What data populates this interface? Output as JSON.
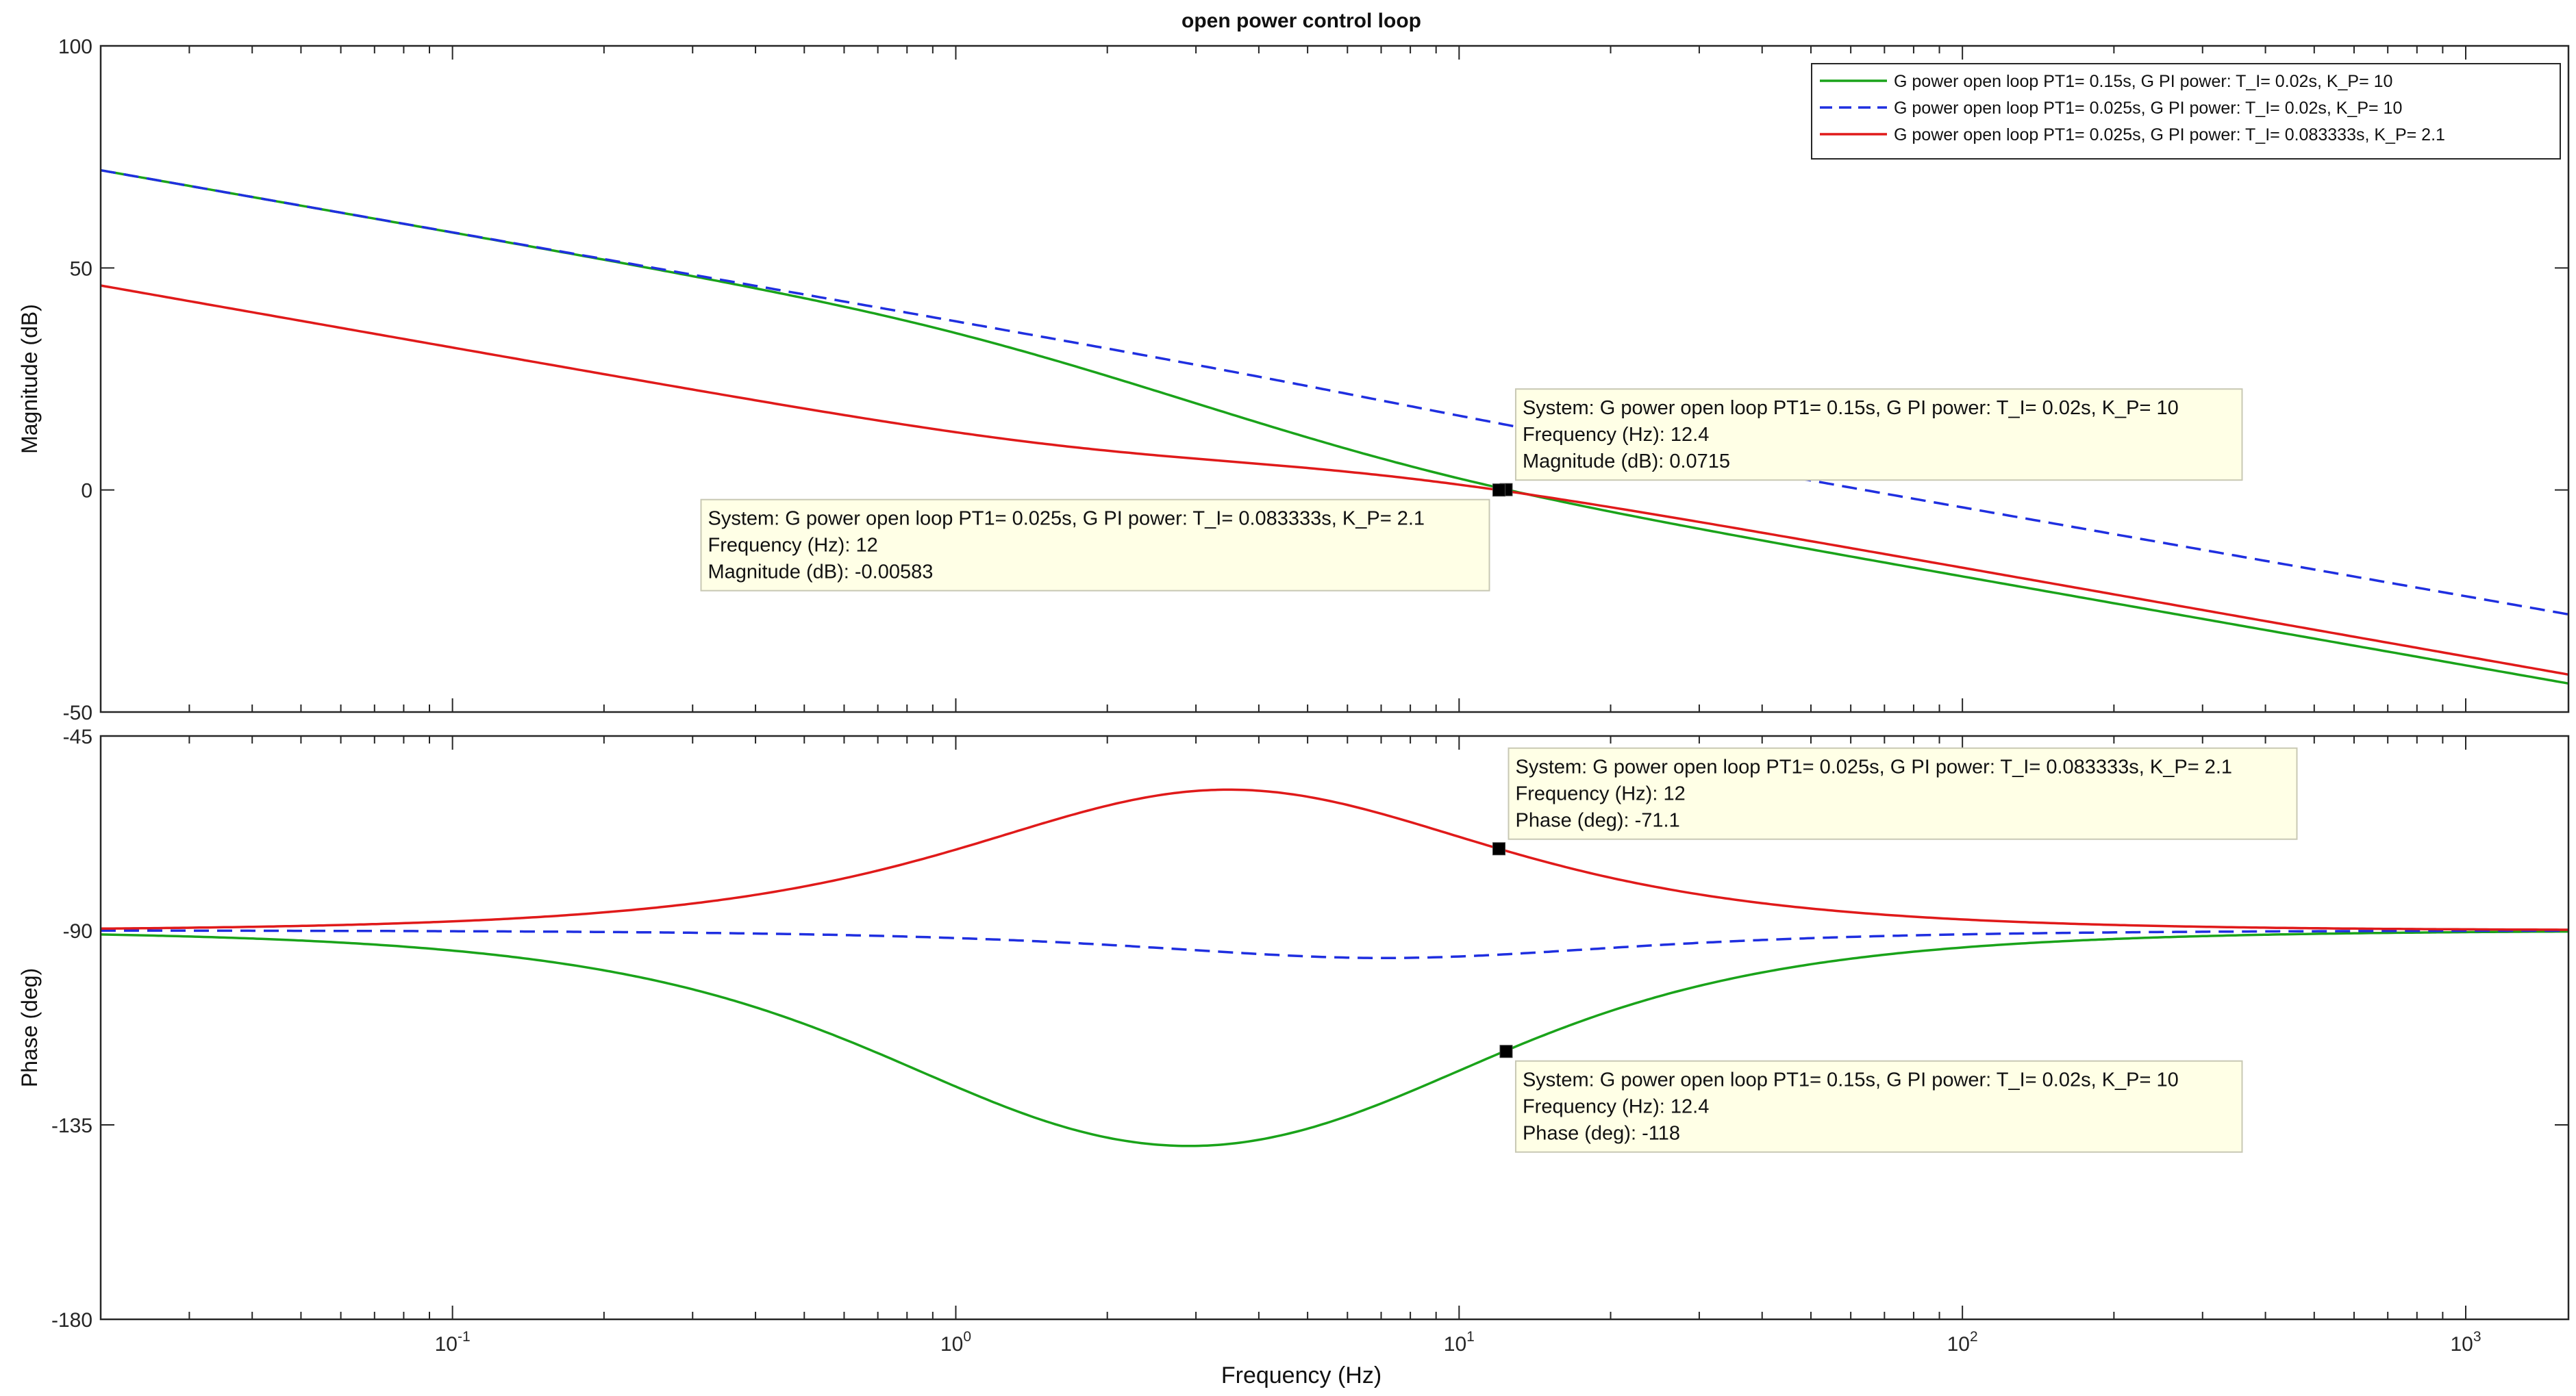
{
  "chart_data": {
    "type": "line",
    "title": "open power control loop",
    "xlabel": "Frequency  (Hz)",
    "xscale": "log",
    "xlim": [
      0.02,
      1600
    ],
    "x_tick_labels": [
      {
        "base": "10",
        "exp": "-1",
        "value": 0.1
      },
      {
        "base": "10",
        "exp": "0",
        "value": 1
      },
      {
        "base": "10",
        "exp": "1",
        "value": 10
      },
      {
        "base": "10",
        "exp": "2",
        "value": 100
      },
      {
        "base": "10",
        "exp": "3",
        "value": 1000
      }
    ],
    "legend_position": "top-right",
    "series": [
      {
        "name": "G power open loop PT1= 0.15s, G PI power: T_I= 0.02s, K_P= 10",
        "color": "#1aa31a",
        "style": "solid",
        "tau": 0.15,
        "Ti": 0.02,
        "Kp": 10
      },
      {
        "name": "G power open loop PT1= 0.025s, G PI power: T_I= 0.02s, K_P= 10",
        "color": "#1f2fe0",
        "style": "dashed",
        "tau": 0.025,
        "Ti": 0.02,
        "Kp": 10
      },
      {
        "name": "G power open loop PT1= 0.025s, G PI power: T_I= 0.083333s, K_P= 2.1",
        "color": "#e01a1a",
        "style": "solid",
        "tau": 0.025,
        "Ti": 0.083333,
        "Kp": 2.1
      }
    ],
    "magnitude": {
      "ylabel": "Magnitude (dB)",
      "ylim": [
        -50,
        100
      ],
      "y_ticks": [
        100,
        50,
        0,
        -50
      ],
      "y_tick_labels": [
        "100",
        "50",
        "0",
        "-50"
      ]
    },
    "phase": {
      "ylabel": "Phase (deg)",
      "ylim": [
        -180,
        -45
      ],
      "y_ticks": [
        -45,
        -90,
        -135,
        -180
      ],
      "y_tick_labels": [
        "-45",
        "-90",
        "-135",
        "-180"
      ]
    },
    "datatips": [
      {
        "panel": "magnitude",
        "series": 0,
        "x": 12.4,
        "y": 0.0715,
        "placement": "above-right",
        "lines": [
          "System: G power open loop PT1= 0.15s, G PI power: T_I= 0.02s, K_P= 10",
          "Frequency (Hz): 12.4",
          "Magnitude (dB): 0.0715"
        ]
      },
      {
        "panel": "magnitude",
        "series": 2,
        "x": 12,
        "y": -0.00583,
        "placement": "below-left",
        "lines": [
          "System: G power open loop PT1= 0.025s, G PI power: T_I= 0.083333s, K_P= 2.1",
          "Frequency (Hz): 12",
          "Magnitude (dB): -0.00583"
        ]
      },
      {
        "panel": "phase",
        "series": 2,
        "x": 12,
        "y": -71.1,
        "placement": "above-right",
        "lines": [
          "System: G power open loop PT1= 0.025s, G PI power: T_I= 0.083333s, K_P= 2.1",
          "Frequency (Hz): 12",
          "Phase (deg): -71.1"
        ]
      },
      {
        "panel": "phase",
        "series": 0,
        "x": 12.4,
        "y": -118,
        "placement": "below-right",
        "lines": [
          "System: G power open loop PT1= 0.15s, G PI power: T_I= 0.02s, K_P= 10",
          "Frequency (Hz): 12.4",
          "Phase (deg): -118"
        ]
      }
    ]
  }
}
